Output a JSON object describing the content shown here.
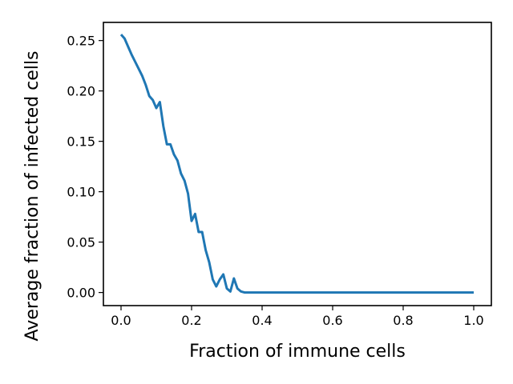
{
  "chart_data": {
    "type": "line",
    "title": "",
    "xlabel": "Fraction of immune cells",
    "ylabel": "Average fraction of infected cells",
    "xlim": [
      -0.05,
      1.05
    ],
    "ylim": [
      -0.013,
      0.268
    ],
    "xticks": [
      0.0,
      0.2,
      0.4,
      0.6,
      0.8,
      1.0
    ],
    "xtick_labels": [
      "0.0",
      "0.2",
      "0.4",
      "0.6",
      "0.8",
      "1.0"
    ],
    "yticks": [
      0.0,
      0.05,
      0.1,
      0.15,
      0.2,
      0.25
    ],
    "ytick_labels": [
      "0.00",
      "0.05",
      "0.10",
      "0.15",
      "0.20",
      "0.25"
    ],
    "grid": false,
    "legend": "none",
    "series": [
      {
        "color": "#1f77b4",
        "x": [
          0.0,
          0.01,
          0.02,
          0.03,
          0.04,
          0.05,
          0.06,
          0.07,
          0.08,
          0.09,
          0.1,
          0.11,
          0.12,
          0.13,
          0.14,
          0.15,
          0.16,
          0.17,
          0.18,
          0.19,
          0.2,
          0.21,
          0.22,
          0.23,
          0.24,
          0.25,
          0.26,
          0.27,
          0.28,
          0.29,
          0.3,
          0.31,
          0.32,
          0.33,
          0.34,
          0.35,
          0.36,
          0.37,
          0.38,
          0.4,
          0.5,
          0.6,
          0.7,
          0.8,
          0.9,
          1.0
        ],
        "y": [
          0.256,
          0.252,
          0.244,
          0.236,
          0.229,
          0.222,
          0.215,
          0.206,
          0.195,
          0.191,
          0.183,
          0.189,
          0.165,
          0.147,
          0.147,
          0.137,
          0.131,
          0.118,
          0.111,
          0.098,
          0.071,
          0.078,
          0.06,
          0.06,
          0.042,
          0.03,
          0.013,
          0.006,
          0.013,
          0.018,
          0.004,
          0.001,
          0.014,
          0.004,
          0.001,
          0.0,
          0.0,
          0.0,
          0.0,
          0.0,
          0.0,
          0.0,
          0.0,
          0.0,
          0.0,
          0.0
        ]
      }
    ]
  }
}
